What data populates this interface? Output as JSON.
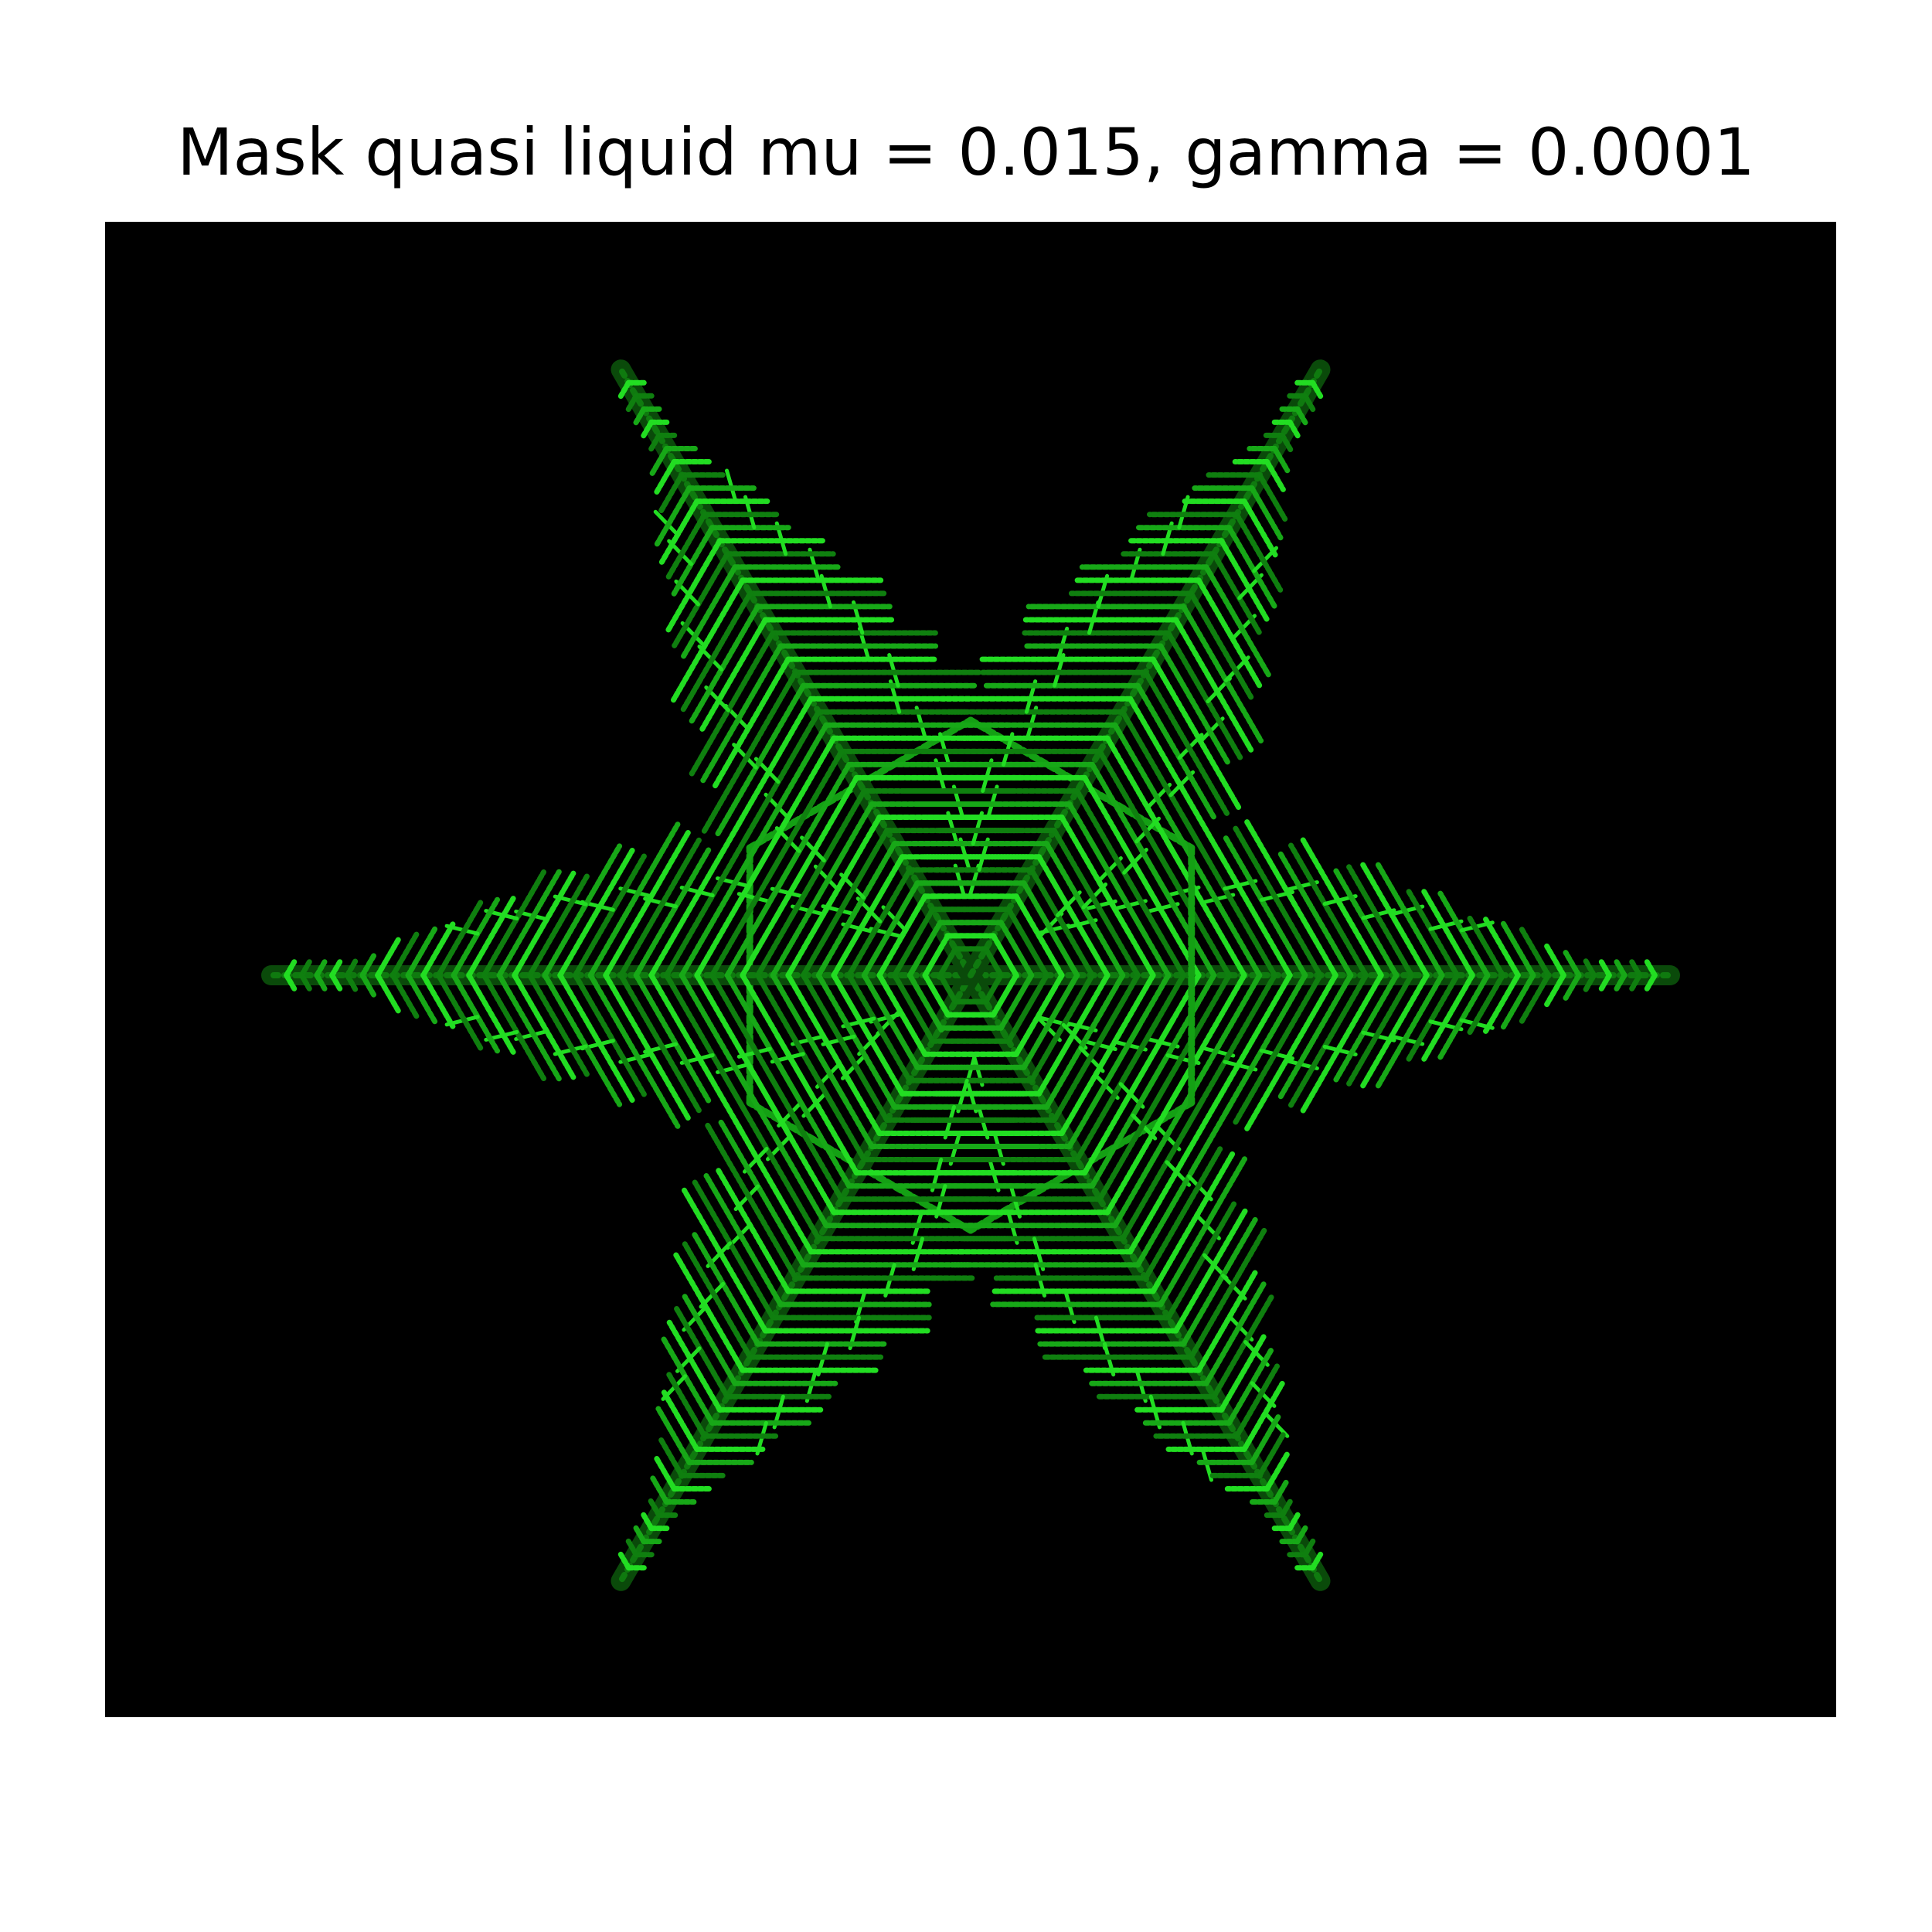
{
  "figure": {
    "title": "Mask quasi liquid mu = 0.015, gamma = 0.0001"
  },
  "image": {
    "background_color": "#000000",
    "crystal_color_bright": "#22dd22",
    "crystal_color_dark": "#0a4a0a",
    "symmetry": "six-fold hexagonal dendritic snowflake"
  }
}
